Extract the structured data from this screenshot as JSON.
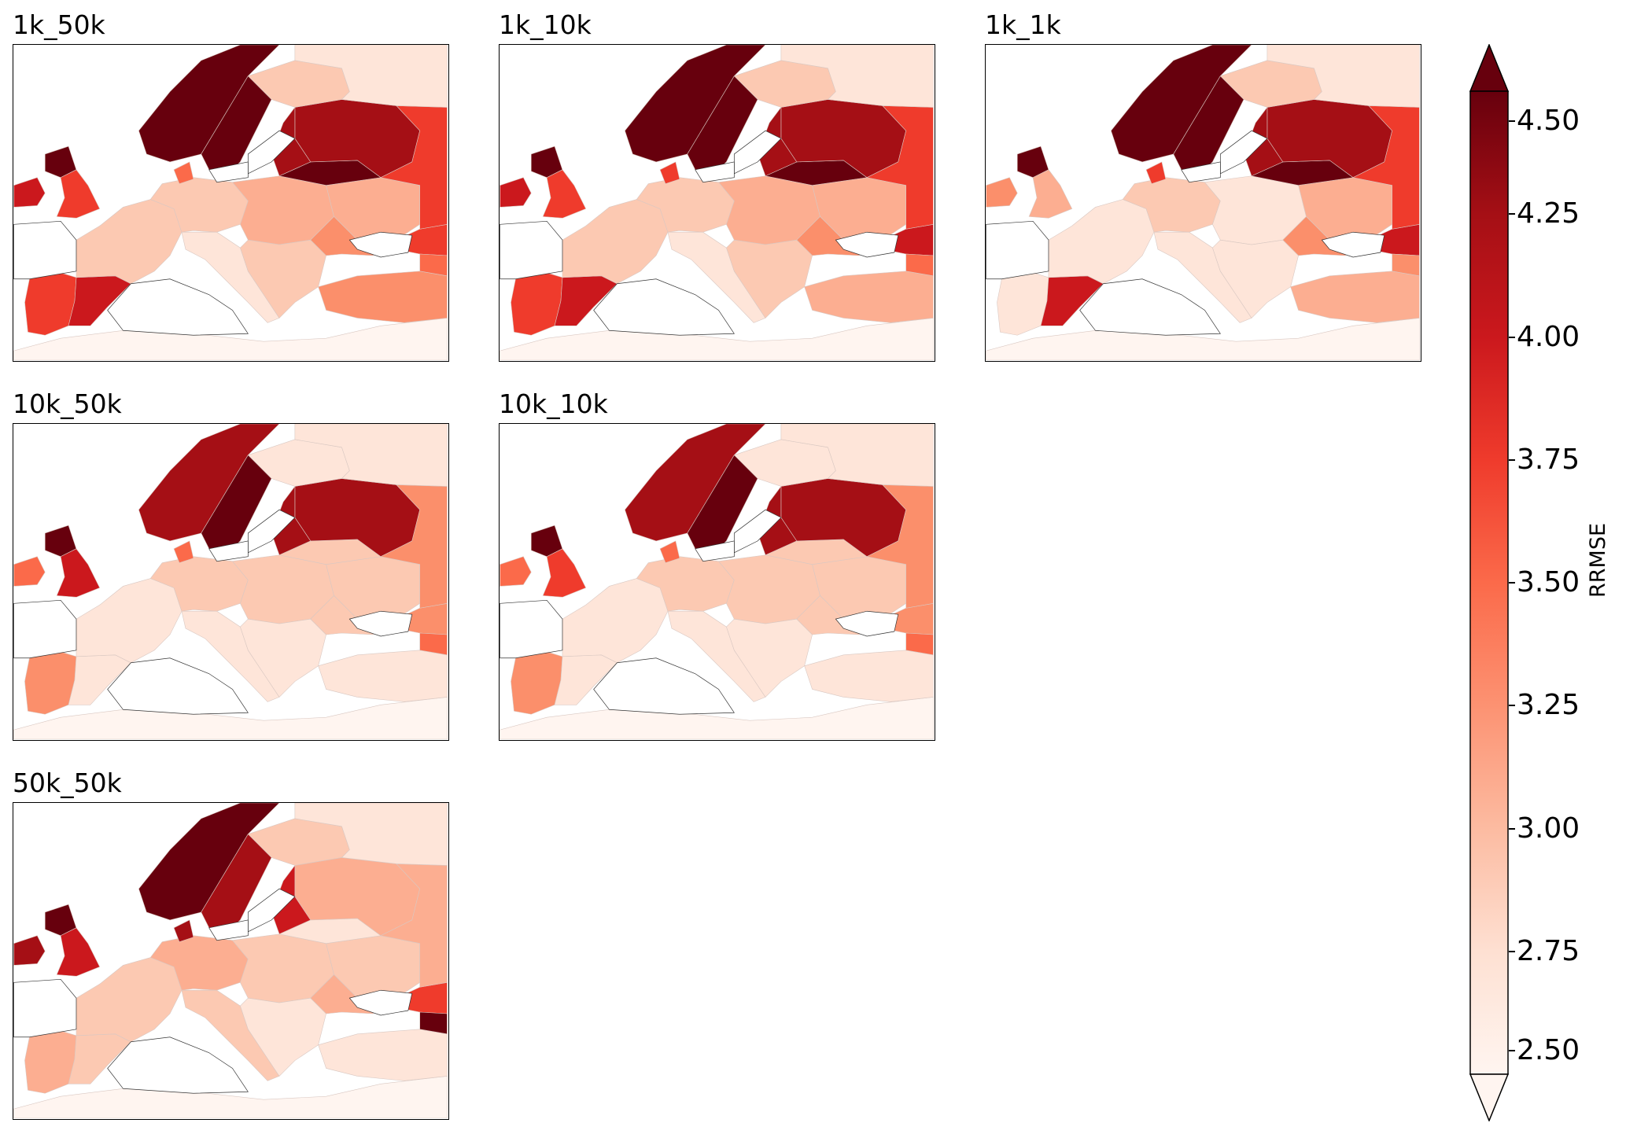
{
  "panels": [
    {
      "title": "1k_50k",
      "shades": {
        "north": 9,
        "sweden": 9,
        "baltic_east": 8,
        "russia_mid": 8,
        "russia_east": 6,
        "uk": 6,
        "ireland": 7,
        "scotland": 9,
        "denmark": 5,
        "iberia_w": 6,
        "iberia_se": 7,
        "france": 2,
        "germany": 2,
        "central": 3,
        "alps_it": 1,
        "balkans": 2,
        "ukraine": 3,
        "ukraine_s": 4,
        "turkey": 4,
        "crimea": 6,
        "caucasus": 5,
        "finland": 2,
        "kola": 1,
        "nafrica": 0,
        "belarus": 9
      }
    },
    {
      "title": "1k_10k",
      "shades": {
        "north": 9,
        "sweden": 9,
        "baltic_east": 8,
        "russia_mid": 8,
        "russia_east": 6,
        "uk": 6,
        "ireland": 7,
        "scotland": 9,
        "denmark": 6,
        "iberia_w": 6,
        "iberia_se": 7,
        "france": 2,
        "germany": 2,
        "central": 3,
        "alps_it": 1,
        "balkans": 2,
        "ukraine": 3,
        "ukraine_s": 4,
        "turkey": 3,
        "crimea": 7,
        "caucasus": 5,
        "finland": 2,
        "kola": 1,
        "nafrica": 0,
        "belarus": 9
      }
    },
    {
      "title": "1k_1k",
      "shades": {
        "north": 9,
        "sweden": 9,
        "baltic_east": 8,
        "russia_mid": 8,
        "russia_east": 6,
        "uk": 3,
        "ireland": 4,
        "scotland": 9,
        "denmark": 6,
        "iberia_w": 1,
        "iberia_se": 7,
        "france": 1,
        "germany": 2,
        "central": 1,
        "alps_it": 1,
        "balkans": 1,
        "ukraine": 3,
        "ukraine_s": 4,
        "turkey": 3,
        "crimea": 7,
        "caucasus": 4,
        "finland": 2,
        "kola": 1,
        "nafrica": 0,
        "belarus": 9
      }
    },
    {
      "title": "10k_50k",
      "shades": {
        "north": 8,
        "sweden": 9,
        "baltic_east": 8,
        "russia_mid": 8,
        "russia_east": 4,
        "uk": 7,
        "ireland": 5,
        "scotland": 9,
        "denmark": 5,
        "iberia_w": 4,
        "iberia_se": 1,
        "france": 1,
        "germany": 2,
        "central": 2,
        "alps_it": 1,
        "balkans": 1,
        "ukraine": 2,
        "ukraine_s": 2,
        "turkey": 1,
        "crimea": 4,
        "caucasus": 5,
        "finland": 1,
        "kola": 1,
        "nafrica": 0,
        "belarus": 2
      }
    },
    {
      "title": "10k_10k",
      "shades": {
        "north": 8,
        "sweden": 9,
        "baltic_east": 8,
        "russia_mid": 8,
        "russia_east": 4,
        "uk": 6,
        "ireland": 5,
        "scotland": 9,
        "denmark": 5,
        "iberia_w": 4,
        "iberia_se": 1,
        "france": 1,
        "germany": 2,
        "central": 2,
        "alps_it": 1,
        "balkans": 1,
        "ukraine": 2,
        "ukraine_s": 2,
        "turkey": 1,
        "crimea": 4,
        "caucasus": 5,
        "finland": 1,
        "kola": 1,
        "nafrica": 0,
        "belarus": 2
      }
    },
    {
      "title": "50k_50k",
      "shades": {
        "north": 9,
        "sweden": 8,
        "baltic_east": 7,
        "russia_mid": 3,
        "russia_east": 3,
        "uk": 7,
        "ireland": 8,
        "scotland": 9,
        "denmark": 8,
        "iberia_w": 3,
        "iberia_se": 2,
        "france": 2,
        "germany": 3,
        "central": 2,
        "alps_it": 2,
        "balkans": 1,
        "ukraine": 2,
        "ukraine_s": 3,
        "turkey": 1,
        "crimea": 6,
        "caucasus": 9,
        "finland": 2,
        "kola": 1,
        "nafrica": 0,
        "belarus": 1
      }
    }
  ],
  "palette": [
    "#fff5f0",
    "#fee5d9",
    "#fcc9b2",
    "#fcae91",
    "#fb8f6b",
    "#fb6a4a",
    "#ef3b2c",
    "#cb181d",
    "#a50f15",
    "#67000d"
  ],
  "colorbar": {
    "label": "RRMSE",
    "ticks": [
      "4.50",
      "4.25",
      "4.00",
      "3.75",
      "3.50",
      "3.25",
      "3.00",
      "2.75",
      "2.50"
    ],
    "range": [
      2.5,
      4.5
    ],
    "extend": "both",
    "cmap": "Reds"
  }
}
